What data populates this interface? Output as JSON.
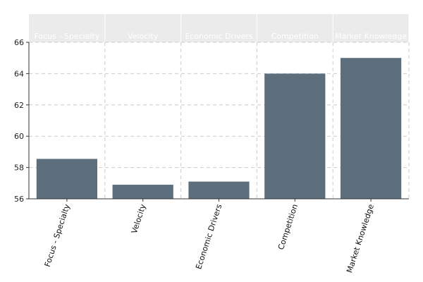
{
  "chart_data": {
    "type": "bar",
    "title": "",
    "xlabel": "",
    "ylabel": "",
    "categories": [
      "Focus - Specialty",
      "Velocity",
      "Economic Drivers",
      "Competition",
      "Market Knowledge"
    ],
    "values": [
      58.55,
      56.9,
      57.1,
      64.0,
      65.0
    ],
    "ylim": [
      56,
      66
    ],
    "yticks": [
      56,
      58,
      60,
      62,
      64,
      66
    ],
    "grid": true,
    "legend": "none",
    "header_labels": [
      "Focus - Specialty",
      "Velocity",
      "Economic Drivers",
      "Competition",
      "Market Knowledge"
    ],
    "colors": {
      "bar": "#5d6e7c",
      "header_band": "#ebebeb",
      "grid": "#cccccc",
      "axis": "#333333"
    }
  }
}
